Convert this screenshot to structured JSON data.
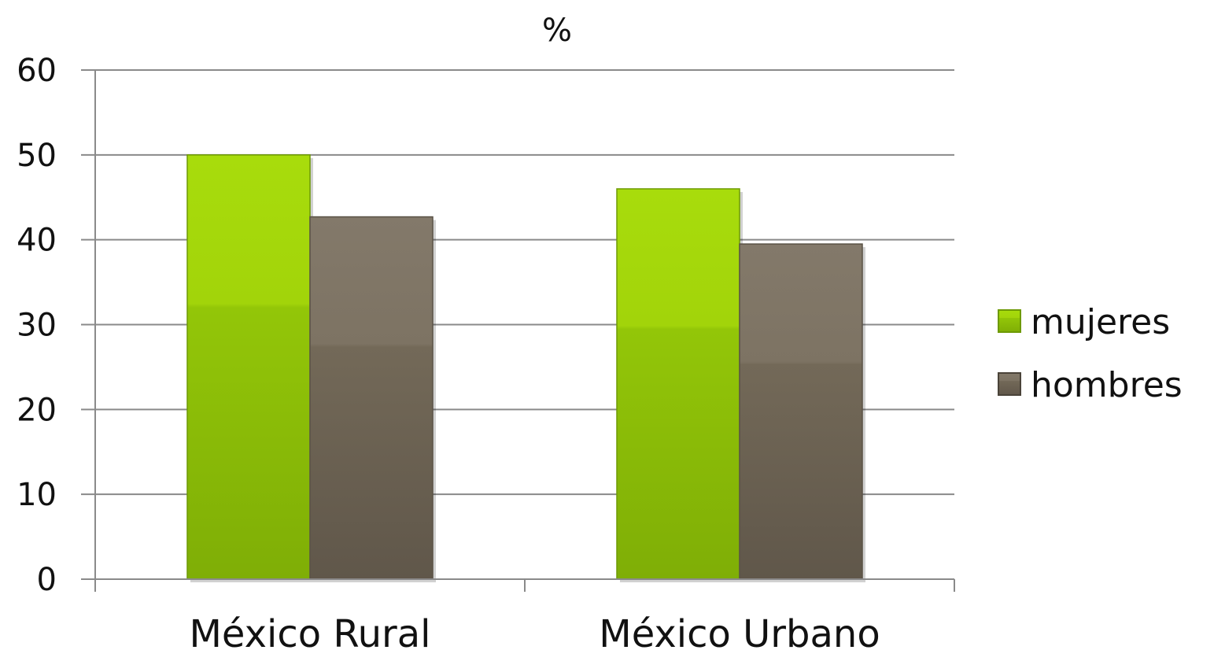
{
  "chart_data": {
    "type": "bar",
    "title": "%",
    "categories": [
      "México Rural",
      "México Urbano"
    ],
    "series": [
      {
        "name": "mujeres",
        "values": [
          50,
          46
        ],
        "color": "#8fc008"
      },
      {
        "name": "hombres",
        "values": [
          42.7,
          39.5
        ],
        "color": "#71675a"
      }
    ],
    "ylim": [
      0,
      60
    ],
    "yticks": [
      0,
      10,
      20,
      30,
      40,
      50,
      60
    ],
    "grid": true,
    "legend": "right"
  }
}
